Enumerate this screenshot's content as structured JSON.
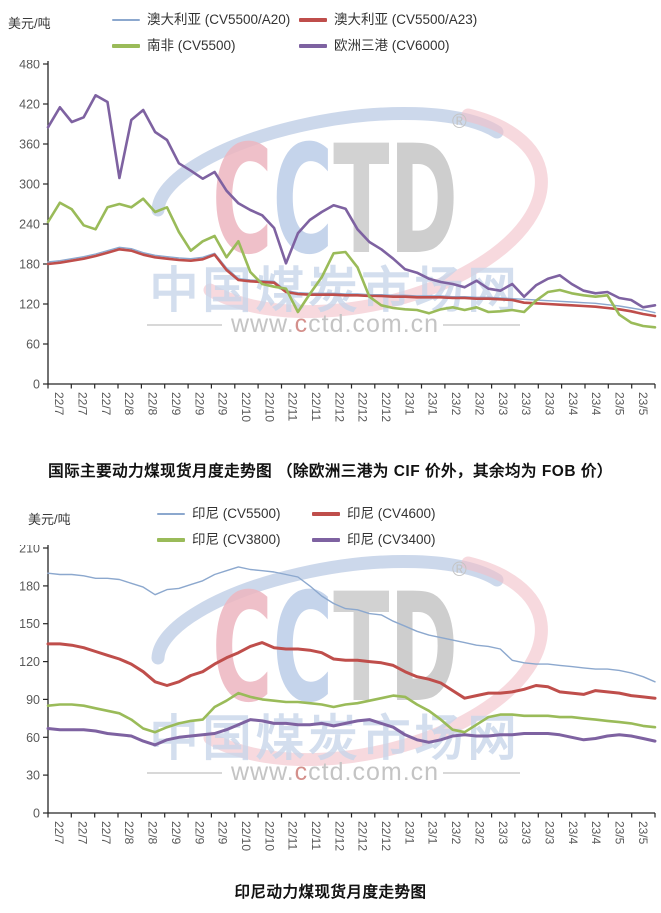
{
  "watermark": {
    "logo_text": "CCTD",
    "registered_mark": "®",
    "cn_text": "中国煤炭市场网",
    "url_text_prefix": "www.",
    "url_text_accent": "c",
    "url_text_suffix": "ctd.com.cn",
    "colors": {
      "c1": "#EDB6C0",
      "c2": "#BCCDE8",
      "t": "#CBCBCB",
      "d": "#C6C6C6",
      "arc_blue": "#B7C7E2",
      "arc_pink": "#F2C0C8",
      "cn": "#C9D6EA",
      "url": "#C4C4C4",
      "url_accent": "#D4908C",
      "line": "#D8D8D8",
      "reg": "#C4C4C4"
    }
  },
  "charts": [
    {
      "unit_label": "美元/吨",
      "title": "国际主要动力煤现货月度走势图 （除欧洲三港为 CIF 价外，其余均为 FOB 价）",
      "chart_data": {
        "type": "line",
        "title": "国际主要动力煤现货月度走势图",
        "ylabel": "美元/吨",
        "ylim": [
          0,
          480
        ],
        "yticks": [
          0,
          60,
          120,
          180,
          240,
          300,
          360,
          420,
          480
        ],
        "grid": false,
        "legend_position": "top",
        "x_labels": [
          "22/7",
          "22/7",
          "22/7",
          "22/8",
          "22/8",
          "22/9",
          "22/9",
          "22/9",
          "22/10",
          "22/10",
          "22/11",
          "22/11",
          "22/12",
          "22/12",
          "22/12",
          "23/1",
          "23/1",
          "23/2",
          "23/2",
          "23/3",
          "23/3",
          "23/3",
          "23/4",
          "23/4",
          "23/5",
          "23/5"
        ],
        "series": [
          {
            "name": "澳大利亚 (CV5500/A20)",
            "color": "#8CA8CE",
            "width": 1.4,
            "values": [
              183,
              185,
              188,
              191,
              195,
              200,
              205,
              203,
              197,
              193,
              191,
              189,
              188,
              190,
              196,
              174,
              158,
              156,
              155,
              154,
              140,
              137,
              136,
              136,
              136,
              135,
              135,
              134,
              134,
              133,
              133,
              132,
              132,
              132,
              131,
              131,
              130,
              130,
              129,
              128,
              127,
              126,
              125,
              124,
              123,
              122,
              121,
              119,
              117,
              114,
              111,
              107
            ]
          },
          {
            "name": "澳大利亚 (CV5500/A23)",
            "color": "#BF4E4B",
            "width": 2.6,
            "values": [
              180,
              182,
              185,
              188,
              192,
              197,
              202,
              200,
              194,
              190,
              188,
              186,
              185,
              187,
              194,
              171,
              156,
              154,
              153,
              152,
              138,
              135,
              134,
              134,
              134,
              133,
              133,
              132,
              132,
              131,
              131,
              130,
              130,
              130,
              129,
              129,
              128,
              128,
              127,
              126,
              122,
              121,
              120,
              119,
              118,
              117,
              116,
              114,
              112,
              109,
              105,
              102
            ]
          },
          {
            "name": "南非 (CV5500)",
            "color": "#9ABB59",
            "width": 2.6,
            "values": [
              243,
              272,
              262,
              238,
              232,
              265,
              270,
              265,
              278,
              258,
              265,
              228,
              200,
              214,
              222,
              190,
              214,
              168,
              150,
              146,
              143,
              108,
              135,
              160,
              196,
              198,
              175,
              131,
              118,
              114,
              112,
              111,
              106,
              112,
              115,
              111,
              115,
              108,
              109,
              111,
              108,
              125,
              138,
              141,
              136,
              133,
              131,
              133,
              104,
              92,
              87,
              85
            ]
          },
          {
            "name": "欧洲三港 (CV6000)",
            "color": "#7E62A1",
            "width": 2.6,
            "values": [
              385,
              415,
              393,
              400,
              433,
              423,
              309,
              396,
              411,
              378,
              366,
              331,
              320,
              308,
              318,
              290,
              271,
              261,
              253,
              234,
              181,
              226,
              246,
              258,
              268,
              263,
              232,
              213,
              202,
              188,
              172,
              167,
              158,
              153,
              150,
              145,
              155,
              143,
              140,
              150,
              131,
              148,
              158,
              163,
              150,
              140,
              136,
              138,
              129,
              126,
              115,
              118
            ]
          }
        ]
      }
    },
    {
      "unit_label": "美元/吨",
      "title": "印尼动力煤现货月度走势图",
      "chart_data": {
        "type": "line",
        "title": "印尼动力煤现货月度走势图",
        "ylabel": "美元/吨",
        "ylim": [
          0,
          210
        ],
        "yticks": [
          0,
          30,
          60,
          90,
          120,
          150,
          180,
          210
        ],
        "grid": false,
        "legend_position": "top",
        "x_labels": [
          "22/7",
          "22/7",
          "22/7",
          "22/8",
          "22/8",
          "22/9",
          "22/9",
          "22/9",
          "22/10",
          "22/10",
          "22/11",
          "22/11",
          "22/12",
          "22/12",
          "22/12",
          "23/1",
          "23/1",
          "23/2",
          "23/2",
          "23/3",
          "23/3",
          "23/3",
          "23/4",
          "23/4",
          "23/5",
          "23/5"
        ],
        "series": [
          {
            "name": "印尼 (CV5500)",
            "color": "#8CA8CE",
            "width": 1.4,
            "values": [
              190,
              189,
              189,
              188,
              186,
              186,
              185,
              182,
              179,
              173,
              177,
              178,
              181,
              184,
              189,
              192,
              195,
              193,
              192,
              191,
              189,
              187,
              180,
              172,
              166,
              162,
              161,
              158,
              157,
              152,
              148,
              144,
              141,
              139,
              137,
              135,
              133,
              132,
              130,
              121,
              119,
              118,
              118,
              117,
              116,
              115,
              114,
              114,
              113,
              111,
              108,
              104
            ]
          },
          {
            "name": "印尼 (CV4600)",
            "color": "#BF4E4B",
            "width": 3,
            "values": [
              134,
              134,
              133,
              131,
              128,
              125,
              122,
              118,
              112,
              104,
              101,
              104,
              109,
              112,
              118,
              123,
              127,
              132,
              135,
              131,
              130,
              130,
              129,
              127,
              122,
              121,
              121,
              120,
              119,
              117,
              112,
              108,
              106,
              103,
              97,
              91,
              93,
              95,
              95,
              96,
              98,
              101,
              100,
              96,
              95,
              94,
              97,
              96,
              95,
              93,
              92,
              91
            ]
          },
          {
            "name": "印尼 (CV3800)",
            "color": "#9ABB59",
            "width": 2.6,
            "values": [
              85,
              86,
              86,
              85,
              83,
              81,
              79,
              74,
              67,
              64,
              68,
              71,
              73,
              74,
              84,
              89,
              95,
              92,
              90,
              89,
              88,
              88,
              87,
              86,
              84,
              86,
              87,
              89,
              91,
              93,
              92,
              86,
              81,
              74,
              66,
              64,
              70,
              76,
              78,
              78,
              77,
              77,
              77,
              76,
              76,
              75,
              74,
              73,
              72,
              71,
              69,
              68
            ]
          },
          {
            "name": "印尼 (CV3400)",
            "color": "#7E62A1",
            "width": 3,
            "values": [
              67,
              66,
              66,
              66,
              65,
              63,
              62,
              61,
              57,
              54,
              58,
              60,
              61,
              62,
              63,
              66,
              70,
              74,
              73,
              71,
              71,
              70,
              70,
              71,
              69,
              71,
              73,
              74,
              71,
              68,
              62,
              58,
              56,
              58,
              61,
              62,
              61,
              61,
              62,
              62,
              63,
              63,
              63,
              62,
              60,
              58,
              59,
              61,
              62,
              61,
              59,
              57
            ]
          }
        ]
      }
    }
  ]
}
